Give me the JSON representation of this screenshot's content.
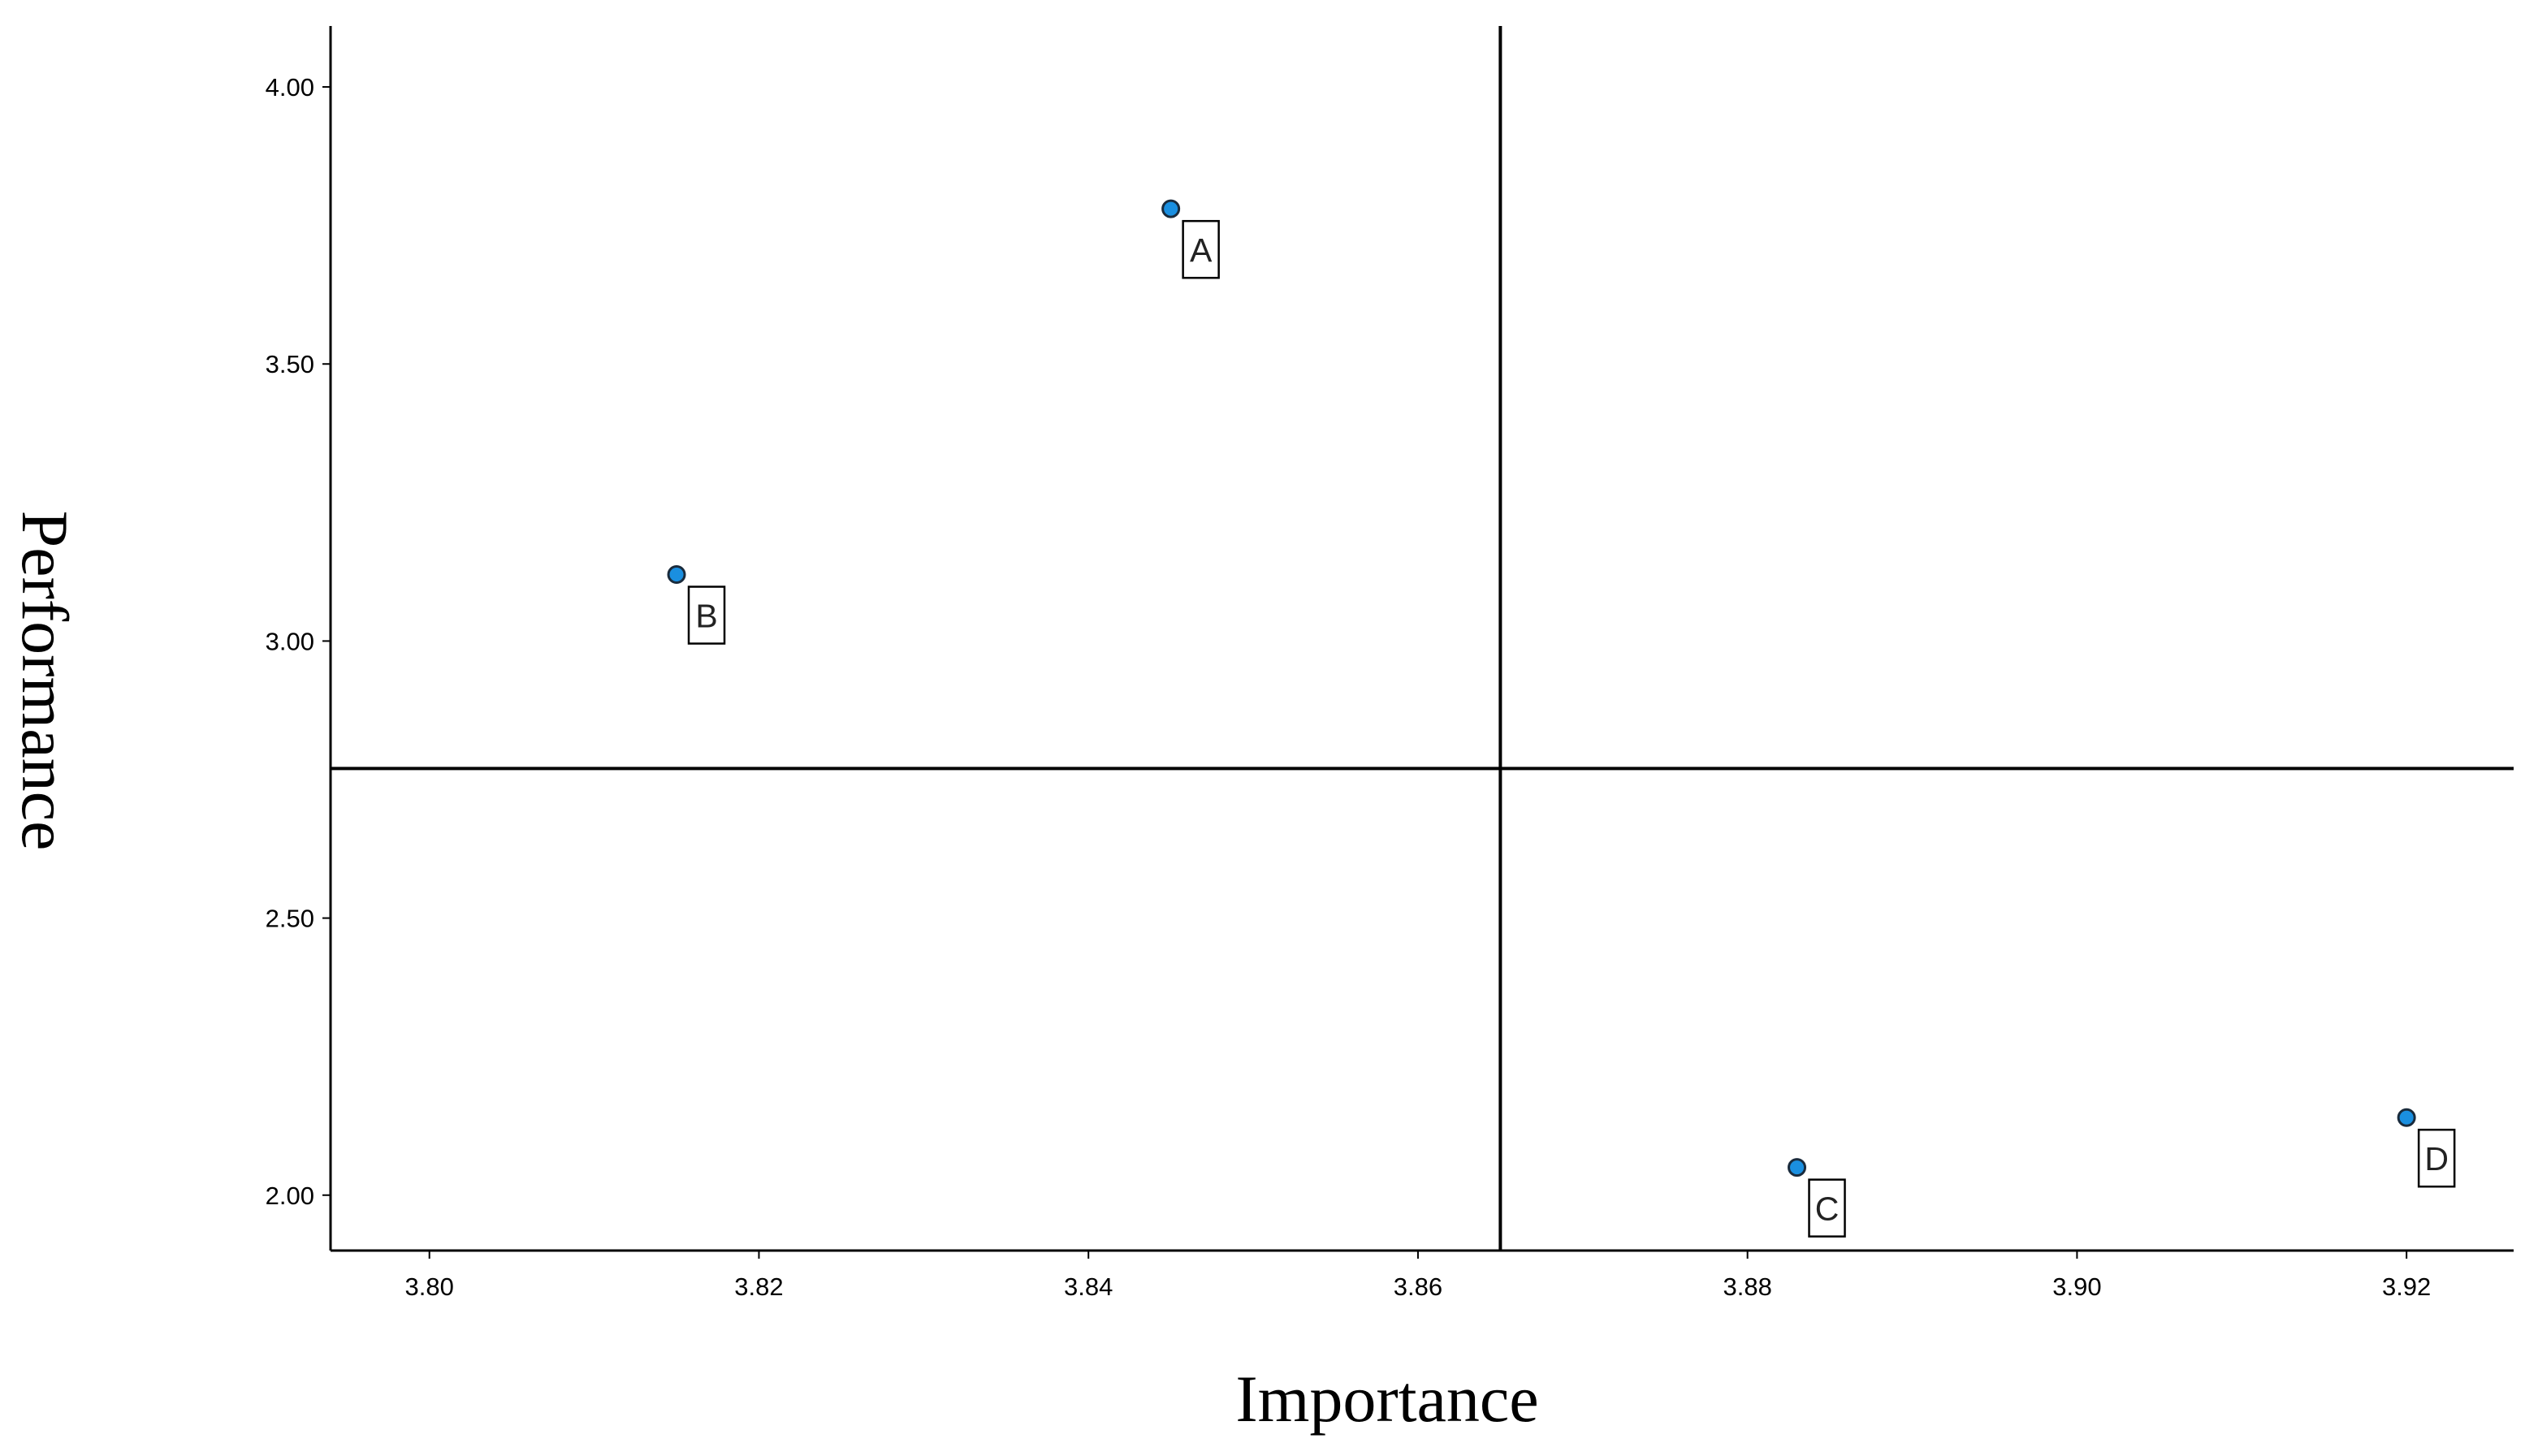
{
  "chart_data": {
    "type": "scatter",
    "title": "",
    "xlabel": "Importance",
    "ylabel": "Performance",
    "xlim": [
      3.794,
      3.9265
    ],
    "ylim": [
      1.9,
      4.11
    ],
    "x_ticks": [
      "3.80",
      "3.82",
      "3.84",
      "3.86",
      "3.88",
      "3.90",
      "3.92"
    ],
    "y_ticks": [
      "2.00",
      "2.50",
      "3.00",
      "3.50",
      "4.00"
    ],
    "reference_lines": {
      "x": 3.865,
      "y": 2.77
    },
    "grid": false,
    "point_color": "#1a8fe0",
    "points": [
      {
        "label": "A",
        "x": 3.845,
        "y": 3.78
      },
      {
        "label": "B",
        "x": 3.815,
        "y": 3.12
      },
      {
        "label": "C",
        "x": 3.883,
        "y": 2.05
      },
      {
        "label": "D",
        "x": 3.92,
        "y": 2.14
      }
    ]
  }
}
